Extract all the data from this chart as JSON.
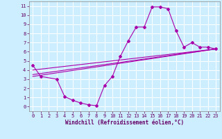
{
  "xlabel": "Windchill (Refroidissement éolien,°C)",
  "bg_color": "#cceeff",
  "grid_color": "#ffffff",
  "line_color": "#aa00aa",
  "xlim": [
    -0.5,
    23.5
  ],
  "ylim": [
    -0.5,
    11.5
  ],
  "xticks": [
    0,
    1,
    2,
    3,
    4,
    5,
    6,
    7,
    8,
    9,
    10,
    11,
    12,
    13,
    14,
    15,
    16,
    17,
    18,
    19,
    20,
    21,
    22,
    23
  ],
  "yticks": [
    0,
    1,
    2,
    3,
    4,
    5,
    6,
    7,
    8,
    9,
    10,
    11
  ],
  "series1_x": [
    0,
    1,
    3,
    4,
    5,
    6,
    7,
    8,
    9,
    10,
    11,
    12,
    13,
    14,
    15,
    16,
    17,
    18,
    19,
    20,
    21,
    22,
    23
  ],
  "series1_y": [
    4.5,
    3.3,
    3.0,
    1.1,
    0.7,
    0.4,
    0.2,
    0.1,
    2.3,
    3.3,
    5.5,
    7.2,
    8.7,
    8.7,
    10.9,
    10.9,
    10.7,
    8.3,
    6.5,
    7.0,
    6.5,
    6.5,
    6.3
  ],
  "series2_x": [
    0,
    23
  ],
  "series2_y": [
    3.5,
    6.3
  ],
  "series3_x": [
    0,
    23
  ],
  "series3_y": [
    4.0,
    6.3
  ],
  "series4_x": [
    0,
    23
  ],
  "series4_y": [
    3.3,
    6.3
  ],
  "tick_fontsize": 5.0,
  "xlabel_fontsize": 5.5,
  "tick_color": "#660066",
  "xlabel_color": "#660066"
}
